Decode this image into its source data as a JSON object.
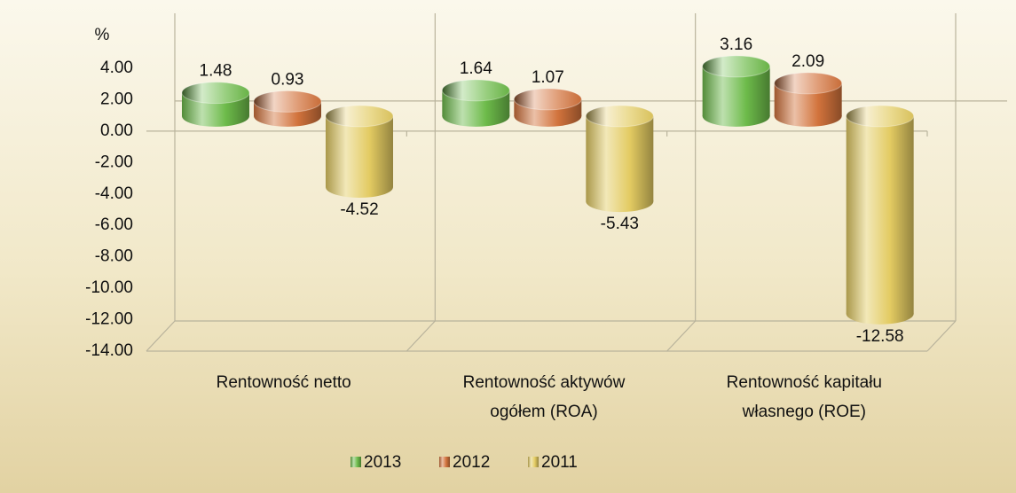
{
  "chart_data": {
    "type": "bar3d",
    "y_label": "%",
    "categories": [
      "Rentowność netto",
      "Rentowność aktywów ogółem (ROA)",
      "Rentowność kapitału własnego (ROE)"
    ],
    "series": [
      {
        "name": "2013",
        "color": "#6dbb4a",
        "values": [
          1.48,
          1.64,
          3.16
        ]
      },
      {
        "name": "2012",
        "color": "#d2733c",
        "values": [
          0.93,
          1.07,
          2.09
        ]
      },
      {
        "name": "2011",
        "color": "#e3cb62",
        "values": [
          -4.52,
          -5.43,
          -12.58
        ]
      }
    ],
    "ylim": [
      -14,
      4
    ],
    "yticks": [
      {
        "value": -14,
        "label": "-14.00"
      },
      {
        "value": -12,
        "label": "-12.00"
      },
      {
        "value": -10,
        "label": "-10.00"
      },
      {
        "value": -8,
        "label": "-8.00"
      },
      {
        "value": -6,
        "label": "-6.00"
      },
      {
        "value": -4,
        "label": "-4.00"
      },
      {
        "value": -2,
        "label": "-2.00"
      },
      {
        "value": 0,
        "label": "0.00"
      },
      {
        "value": 2,
        "label": "2.00"
      },
      {
        "value": 4,
        "label": "4.00"
      }
    ],
    "grid": false,
    "legend": "bottom"
  }
}
